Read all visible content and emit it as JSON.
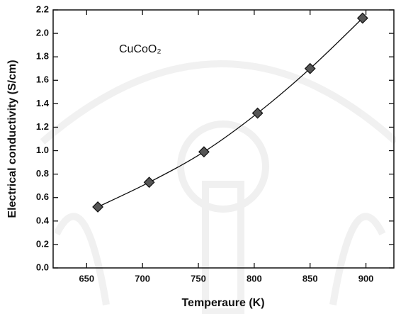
{
  "chart_data": {
    "type": "scatter",
    "annotation": "CuCoO₂",
    "x_label": "Temperaure (K)",
    "y_label": "Electrical  conductivity (S/cm)",
    "x": [
      660,
      706,
      755,
      803,
      850,
      897
    ],
    "values": [
      0.52,
      0.73,
      0.99,
      1.32,
      1.7,
      2.13
    ],
    "color": "#555555",
    "line": true,
    "xlim": [
      620,
      925
    ],
    "ylim": [
      0,
      2.2
    ],
    "xticks": [
      650,
      700,
      750,
      800,
      850,
      900
    ],
    "yticks": [
      {
        "value": 0,
        "label": "0.0"
      },
      0.2,
      0.4,
      0.6,
      0.8,
      {
        "value": 1,
        "label": "1.0"
      },
      1.2,
      1.4,
      1.6,
      1.8,
      {
        "value": 2,
        "label": "2.0"
      },
      2.2
    ]
  }
}
